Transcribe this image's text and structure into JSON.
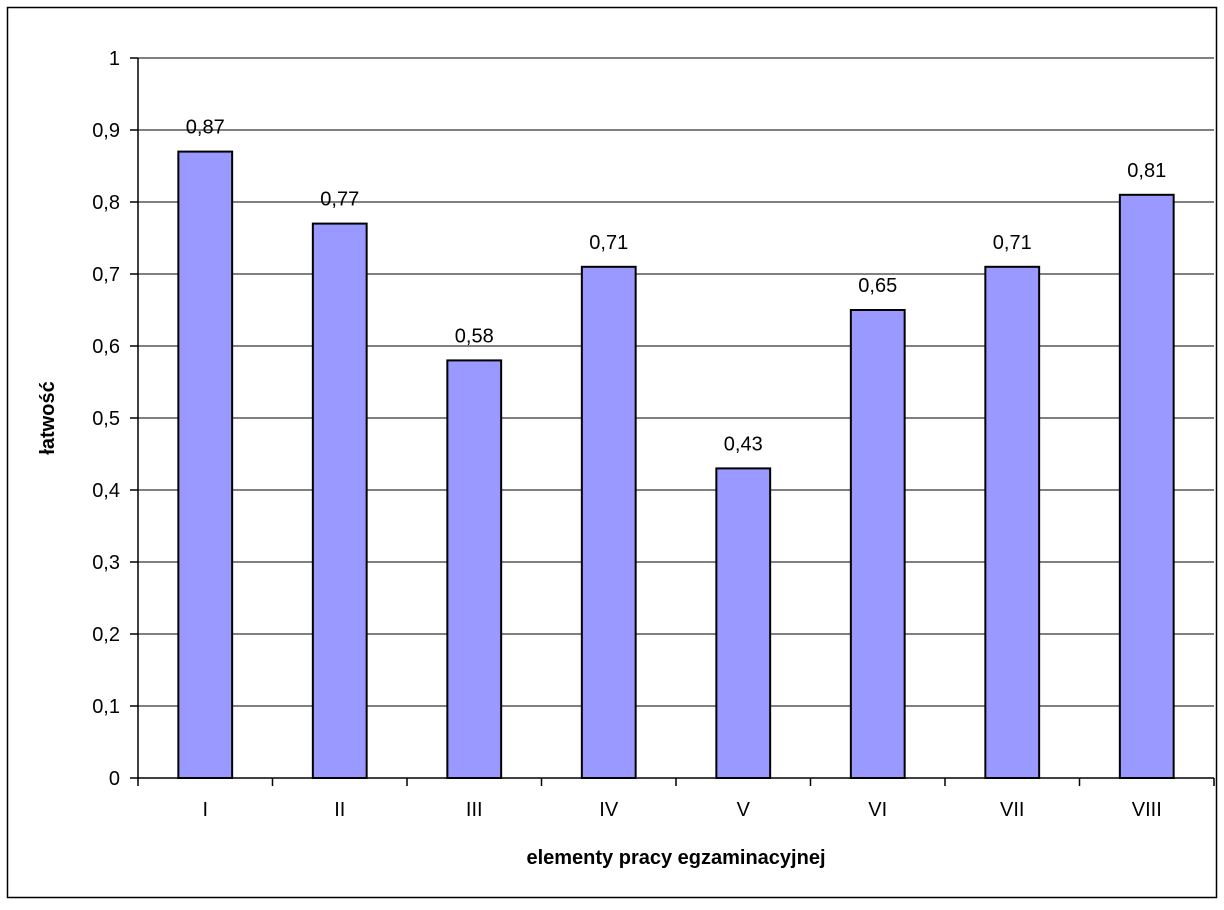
{
  "chart_data": {
    "type": "bar",
    "title": "",
    "xlabel": "elementy pracy egzaminacyjnej",
    "ylabel": "łatwość",
    "categories": [
      "I",
      "II",
      "III",
      "IV",
      "V",
      "VI",
      "VII",
      "VIII"
    ],
    "values": [
      0.87,
      0.77,
      0.58,
      0.71,
      0.43,
      0.65,
      0.71,
      0.81
    ],
    "value_labels": [
      "0,87",
      "0,77",
      "0,58",
      "0,71",
      "0,43",
      "0,65",
      "0,71",
      "0,81"
    ],
    "ylim": [
      0,
      1
    ],
    "y_ticks": [
      0,
      0.1,
      0.2,
      0.3,
      0.4,
      0.5,
      0.6,
      0.7,
      0.8,
      0.9,
      1
    ],
    "y_tick_labels": [
      "0",
      "0,1",
      "0,2",
      "0,3",
      "0,4",
      "0,5",
      "0,6",
      "0,7",
      "0,8",
      "0,9",
      "1"
    ],
    "grid": true,
    "legend": "none",
    "colors": {
      "bar_fill": "#9999ff",
      "bar_stroke": "#000000",
      "grid": "#000000",
      "background": "#ffffff"
    }
  }
}
